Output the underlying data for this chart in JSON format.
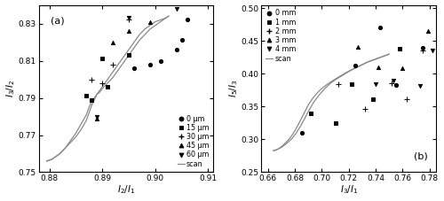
{
  "panel_a": {
    "xlabel": "$I_2/I_1$",
    "ylabel": "$I_3/I_2$",
    "label": "(a)",
    "xlim": [
      0.878,
      0.911
    ],
    "ylim": [
      0.75,
      0.84
    ],
    "xticks": [
      0.88,
      0.89,
      0.9,
      0.91
    ],
    "yticks": [
      0.75,
      0.77,
      0.79,
      0.81,
      0.83
    ],
    "scatter": {
      "circle": {
        "x": [
          0.896,
          0.899,
          0.901,
          0.904,
          0.905,
          0.906
        ],
        "y": [
          0.806,
          0.808,
          0.81,
          0.816,
          0.821,
          0.832
        ]
      },
      "square": {
        "x": [
          0.887,
          0.888,
          0.89,
          0.891,
          0.895
        ],
        "y": [
          0.791,
          0.789,
          0.811,
          0.796,
          0.813
        ]
      },
      "plus": {
        "x": [
          0.888,
          0.89,
          0.892,
          0.895
        ],
        "y": [
          0.8,
          0.798,
          0.808,
          0.832
        ]
      },
      "triangle_up": {
        "x": [
          0.889,
          0.892,
          0.895,
          0.899
        ],
        "y": [
          0.779,
          0.82,
          0.826,
          0.831
        ]
      },
      "triangle_down": {
        "x": [
          0.889,
          0.895,
          0.904
        ],
        "y": [
          0.78,
          0.833,
          0.838
        ]
      }
    },
    "scan_x": [
      0.8795,
      0.8805,
      0.881,
      0.882,
      0.883,
      0.884,
      0.885,
      0.886,
      0.887,
      0.8875,
      0.888,
      0.8885,
      0.889,
      0.8895,
      0.89,
      0.891,
      0.892,
      0.893,
      0.894,
      0.895,
      0.896,
      0.897,
      0.898,
      0.899,
      0.9,
      0.901,
      0.902,
      0.9025
    ],
    "scan_y1": [
      0.756,
      0.757,
      0.758,
      0.76,
      0.763,
      0.766,
      0.769,
      0.773,
      0.778,
      0.782,
      0.786,
      0.789,
      0.792,
      0.794,
      0.796,
      0.8,
      0.804,
      0.808,
      0.812,
      0.816,
      0.82,
      0.824,
      0.827,
      0.829,
      0.831,
      0.832,
      0.833,
      0.834
    ],
    "scan_y2": [
      0.756,
      0.757,
      0.758,
      0.76,
      0.763,
      0.767,
      0.771,
      0.776,
      0.781,
      0.785,
      0.788,
      0.79,
      0.792,
      0.793,
      0.795,
      0.798,
      0.801,
      0.805,
      0.809,
      0.813,
      0.817,
      0.821,
      0.824,
      0.827,
      0.829,
      0.831,
      0.833,
      0.834
    ],
    "legend_labels": [
      "0 μm",
      "15 μm",
      "30 μm",
      "45 μm",
      "60 μm",
      "scan"
    ],
    "legend_loc": "lower right"
  },
  "panel_b": {
    "xlabel": "$I_3/I_1$",
    "ylabel": "$I_5/I_3$",
    "label": "(b)",
    "xlim": [
      0.655,
      0.785
    ],
    "ylim": [
      0.25,
      0.505
    ],
    "xticks": [
      0.66,
      0.68,
      0.7,
      0.72,
      0.74,
      0.76,
      0.78
    ],
    "yticks": [
      0.25,
      0.3,
      0.35,
      0.4,
      0.45,
      0.5
    ],
    "scatter": {
      "circle": {
        "x": [
          0.685,
          0.725,
          0.743,
          0.755,
          0.775
        ],
        "y": [
          0.31,
          0.413,
          0.471,
          0.383,
          0.44
        ]
      },
      "square": {
        "x": [
          0.692,
          0.71,
          0.722,
          0.738,
          0.758
        ],
        "y": [
          0.34,
          0.325,
          0.384,
          0.362,
          0.438
        ]
      },
      "plus": {
        "x": [
          0.712,
          0.732,
          0.752,
          0.763,
          0.775
        ],
        "y": [
          0.384,
          0.346,
          0.385,
          0.362,
          0.435
        ]
      },
      "triangle_up": {
        "x": [
          0.727,
          0.742,
          0.76,
          0.779
        ],
        "y": [
          0.441,
          0.41,
          0.408,
          0.465
        ]
      },
      "triangle_down": {
        "x": [
          0.74,
          0.753,
          0.773,
          0.782
        ],
        "y": [
          0.384,
          0.39,
          0.382,
          0.435
        ]
      }
    },
    "scan_x": [
      0.664,
      0.666,
      0.668,
      0.67,
      0.672,
      0.675,
      0.678,
      0.681,
      0.684,
      0.687,
      0.69,
      0.694,
      0.698,
      0.702,
      0.706,
      0.71,
      0.714,
      0.718,
      0.722,
      0.726,
      0.73,
      0.734,
      0.738,
      0.742,
      0.746,
      0.75
    ],
    "scan_y1": [
      0.283,
      0.284,
      0.286,
      0.288,
      0.291,
      0.296,
      0.302,
      0.31,
      0.32,
      0.331,
      0.343,
      0.357,
      0.368,
      0.377,
      0.385,
      0.391,
      0.396,
      0.401,
      0.406,
      0.41,
      0.414,
      0.418,
      0.421,
      0.424,
      0.427,
      0.43
    ],
    "scan_y2": [
      0.283,
      0.284,
      0.286,
      0.289,
      0.293,
      0.299,
      0.307,
      0.317,
      0.329,
      0.341,
      0.353,
      0.365,
      0.374,
      0.381,
      0.387,
      0.392,
      0.397,
      0.402,
      0.406,
      0.41,
      0.414,
      0.418,
      0.421,
      0.424,
      0.427,
      0.43
    ],
    "legend_labels": [
      "0 mm",
      "1 mm",
      "2 mm",
      "3 mm",
      "4 mm",
      "scan"
    ],
    "legend_loc": "upper left"
  },
  "scan_color": "#888888",
  "scatter_color": "black",
  "fig_bg": "white"
}
